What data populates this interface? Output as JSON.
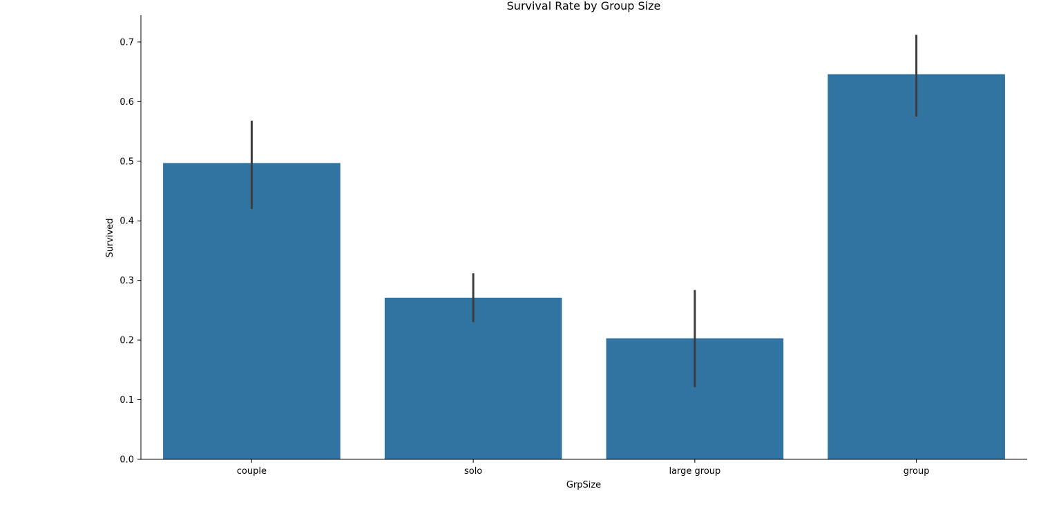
{
  "chart_data": {
    "type": "bar",
    "title": "Survival Rate by Group Size",
    "xlabel": "GrpSize",
    "ylabel": "Survived",
    "categories": [
      "couple",
      "solo",
      "large group",
      "group"
    ],
    "values": [
      0.497,
      0.271,
      0.203,
      0.646
    ],
    "error_low": [
      0.42,
      0.23,
      0.121,
      0.575
    ],
    "error_high": [
      0.568,
      0.312,
      0.284,
      0.712
    ],
    "ylim": [
      0,
      0.745
    ],
    "yticks": [
      0.0,
      0.1,
      0.2,
      0.3,
      0.4,
      0.5,
      0.6,
      0.7
    ],
    "ytick_labels": [
      "0.0",
      "0.1",
      "0.2",
      "0.3",
      "0.4",
      "0.5",
      "0.6",
      "0.7"
    ],
    "grid": false,
    "legend": "none",
    "colors": {
      "bar": "#3274a1",
      "error_bar": "#3d3d3d",
      "axis": "#000000"
    }
  }
}
